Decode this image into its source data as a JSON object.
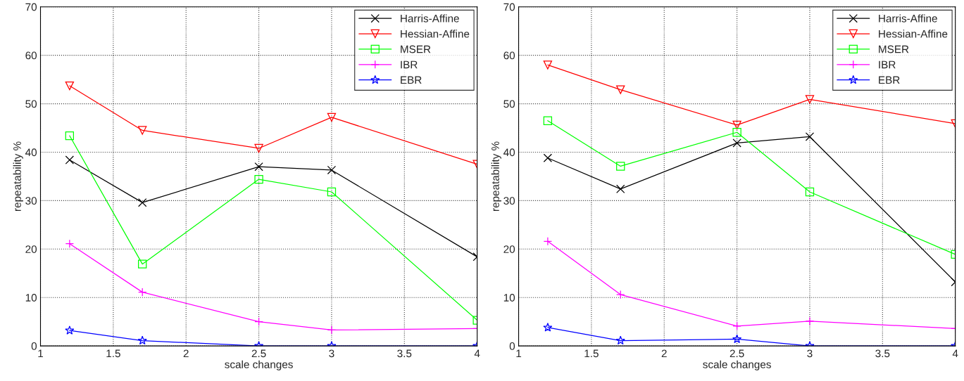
{
  "chart_data": [
    {
      "type": "line",
      "xlabel": "scale changes",
      "ylabel": "repeatability %",
      "x": [
        1.2,
        1.7,
        2.5,
        3,
        4
      ],
      "xlim": [
        1,
        4
      ],
      "ylim": [
        0,
        70
      ],
      "xticks": [
        1,
        1.5,
        2,
        2.5,
        3,
        3.5,
        4
      ],
      "yticks": [
        0,
        10,
        20,
        30,
        40,
        50,
        60,
        70
      ],
      "grid": true,
      "legend": "top right",
      "series": [
        {
          "name": "Harris-Affine",
          "color": "#000000",
          "marker": "cross",
          "values": [
            38.4,
            29.6,
            37,
            36.3,
            18.4
          ]
        },
        {
          "name": "Hessian-Affine",
          "color": "#ff0000",
          "marker": "triangle",
          "values": [
            53.7,
            44.5,
            40.8,
            47.2,
            37.5
          ]
        },
        {
          "name": "MSER",
          "color": "#00ff00",
          "marker": "square",
          "values": [
            43.4,
            16.9,
            34.4,
            31.8,
            5.3
          ]
        },
        {
          "name": "IBR",
          "color": "#ff00ff",
          "marker": "plus",
          "values": [
            21.1,
            11.1,
            5.0,
            3.3,
            3.6
          ]
        },
        {
          "name": "EBR",
          "color": "#0000ff",
          "marker": "star",
          "values": [
            3.2,
            1.1,
            0,
            0,
            0
          ]
        }
      ]
    },
    {
      "type": "line",
      "xlabel": "scale changes",
      "ylabel": "repeatability %",
      "x": [
        1.2,
        1.7,
        2.5,
        3,
        4
      ],
      "xlim": [
        1,
        4
      ],
      "ylim": [
        0,
        70
      ],
      "xticks": [
        1,
        1.5,
        2,
        2.5,
        3,
        3.5,
        4
      ],
      "yticks": [
        0,
        10,
        20,
        30,
        40,
        50,
        60,
        70
      ],
      "grid": true,
      "legend": "top right",
      "series": [
        {
          "name": "Harris-Affine",
          "color": "#000000",
          "marker": "cross",
          "values": [
            38.8,
            32.4,
            41.9,
            43.2,
            13.2
          ]
        },
        {
          "name": "Hessian-Affine",
          "color": "#ff0000",
          "marker": "triangle",
          "values": [
            58,
            52.9,
            45.6,
            50.9,
            45.9
          ]
        },
        {
          "name": "MSER",
          "color": "#00ff00",
          "marker": "square",
          "values": [
            46.5,
            37.1,
            44.1,
            31.8,
            18.9
          ]
        },
        {
          "name": "IBR",
          "color": "#ff00ff",
          "marker": "plus",
          "values": [
            21.6,
            10.6,
            4.1,
            5.1,
            3.6
          ]
        },
        {
          "name": "EBR",
          "color": "#0000ff",
          "marker": "star",
          "values": [
            3.8,
            1.1,
            1.4,
            0,
            0
          ]
        }
      ]
    }
  ]
}
